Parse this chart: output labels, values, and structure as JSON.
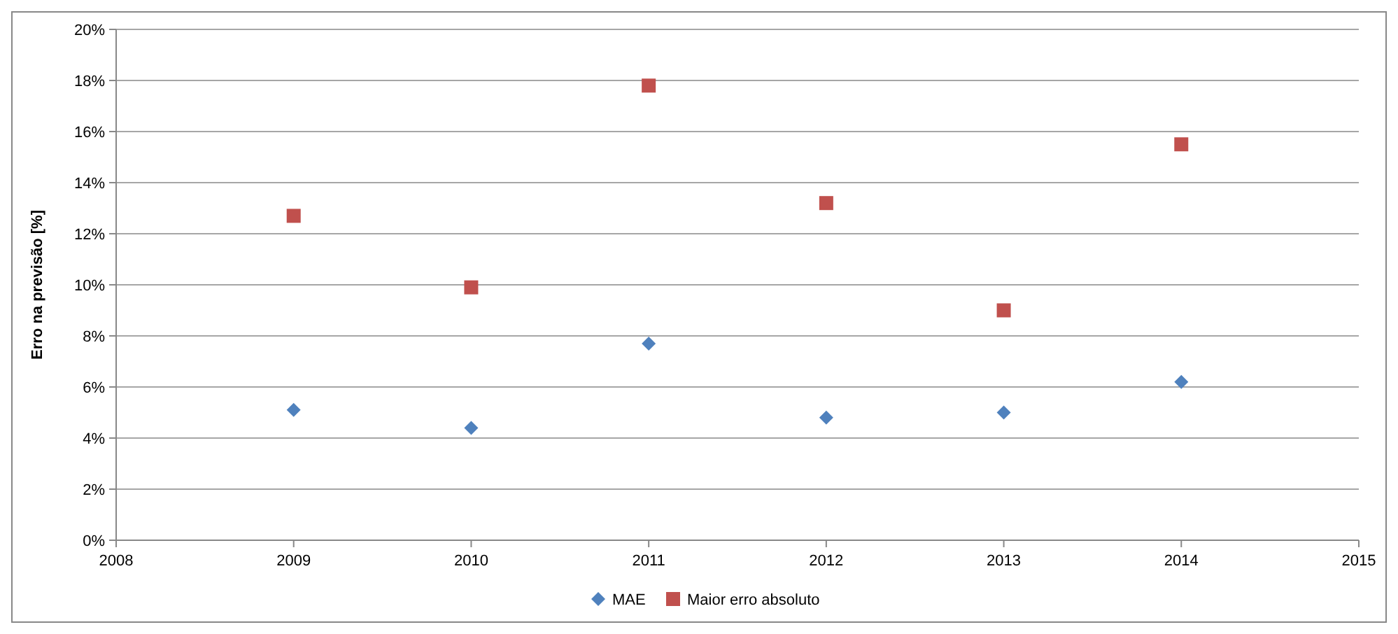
{
  "chart_data": {
    "type": "scatter",
    "ylabel": "Erro na previsão [%]",
    "x": [
      2009,
      2010,
      2011,
      2012,
      2013,
      2014
    ],
    "series": [
      {
        "name": "MAE",
        "color": "#4f81bd",
        "marker": "diamond",
        "values": [
          5.1,
          4.4,
          7.7,
          4.8,
          5.0,
          6.2
        ]
      },
      {
        "name": "Maior erro absoluto",
        "color": "#c0504d",
        "marker": "square",
        "values": [
          12.7,
          9.9,
          17.8,
          13.2,
          9.0,
          15.5
        ]
      }
    ],
    "xlim": [
      2008,
      2015
    ],
    "xticks": [
      2008,
      2009,
      2010,
      2011,
      2012,
      2013,
      2014,
      2015
    ],
    "ylim": [
      0,
      20
    ],
    "yticks": [
      {
        "value": 0,
        "label": "0%"
      },
      {
        "value": 2,
        "label": "2%"
      },
      {
        "value": 4,
        "label": "4%"
      },
      {
        "value": 6,
        "label": "6%"
      },
      {
        "value": 8,
        "label": "8%"
      },
      {
        "value": 10,
        "label": "10%"
      },
      {
        "value": 12,
        "label": "12%"
      },
      {
        "value": 14,
        "label": "14%"
      },
      {
        "value": 16,
        "label": "16%"
      },
      {
        "value": 18,
        "label": "18%"
      },
      {
        "value": 20,
        "label": "20%"
      }
    ],
    "grid": "y",
    "legend": "bottom"
  }
}
